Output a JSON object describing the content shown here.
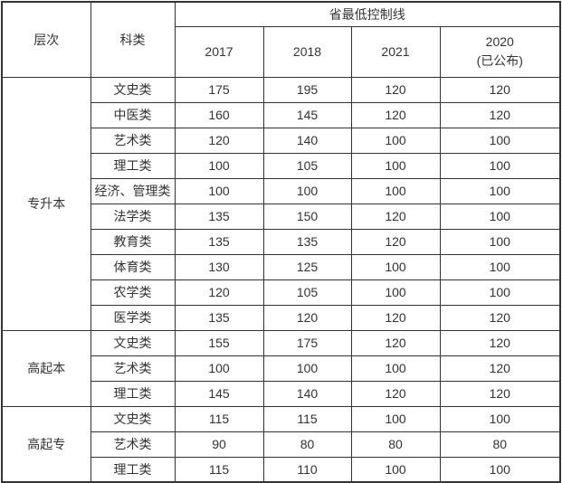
{
  "table": {
    "header": {
      "level": "层次",
      "category": "科类",
      "group_title": "省最低控制线",
      "years": [
        {
          "line1": "2017"
        },
        {
          "line1": "2018"
        },
        {
          "line1": "2021"
        },
        {
          "line1": "2020",
          "line2": "(已公布)"
        }
      ]
    },
    "groups": [
      {
        "level": "专升本",
        "rows": [
          {
            "category": "文史类",
            "values": [
              "175",
              "195",
              "120",
              "120"
            ]
          },
          {
            "category": "中医类",
            "values": [
              "160",
              "145",
              "120",
              "120"
            ]
          },
          {
            "category": "艺术类",
            "values": [
              "120",
              "140",
              "100",
              "100"
            ]
          },
          {
            "category": "理工类",
            "values": [
              "100",
              "105",
              "100",
              "100"
            ]
          },
          {
            "category": "经济、管理类",
            "values": [
              "100",
              "100",
              "100",
              "100"
            ]
          },
          {
            "category": "法学类",
            "values": [
              "135",
              "150",
              "120",
              "100"
            ]
          },
          {
            "category": "教育类",
            "values": [
              "135",
              "135",
              "120",
              "100"
            ]
          },
          {
            "category": "体育类",
            "values": [
              "130",
              "125",
              "100",
              "100"
            ]
          },
          {
            "category": "农学类",
            "values": [
              "120",
              "105",
              "100",
              "100"
            ]
          },
          {
            "category": "医学类",
            "values": [
              "135",
              "120",
              "120",
              "120"
            ]
          }
        ]
      },
      {
        "level": "高起本",
        "rows": [
          {
            "category": "文史类",
            "values": [
              "155",
              "175",
              "120",
              "120"
            ]
          },
          {
            "category": "艺术类",
            "values": [
              "100",
              "100",
              "100",
              "120"
            ]
          },
          {
            "category": "理工类",
            "values": [
              "145",
              "140",
              "120",
              "120"
            ]
          }
        ]
      },
      {
        "level": "高起专",
        "rows": [
          {
            "category": "文史类",
            "values": [
              "115",
              "115",
              "100",
              "100"
            ]
          },
          {
            "category": "艺术类",
            "values": [
              "90",
              "80",
              "80",
              "80"
            ]
          },
          {
            "category": "理工类",
            "values": [
              "115",
              "110",
              "100",
              "100"
            ]
          }
        ]
      }
    ],
    "colors": {
      "border": "#333333",
      "text": "#333333",
      "background": "#ffffff"
    }
  },
  "chart_data": {
    "type": "table",
    "title": "省最低控制线",
    "columns": [
      "层次",
      "科类",
      "2017",
      "2018",
      "2021",
      "2020(已公布)"
    ],
    "rows": [
      [
        "专升本",
        "文史类",
        175,
        195,
        120,
        120
      ],
      [
        "专升本",
        "中医类",
        160,
        145,
        120,
        120
      ],
      [
        "专升本",
        "艺术类",
        120,
        140,
        100,
        100
      ],
      [
        "专升本",
        "理工类",
        100,
        105,
        100,
        100
      ],
      [
        "专升本",
        "经济、管理类",
        100,
        100,
        100,
        100
      ],
      [
        "专升本",
        "法学类",
        135,
        150,
        120,
        100
      ],
      [
        "专升本",
        "教育类",
        135,
        135,
        120,
        100
      ],
      [
        "专升本",
        "体育类",
        130,
        125,
        100,
        100
      ],
      [
        "专升本",
        "农学类",
        120,
        105,
        100,
        100
      ],
      [
        "专升本",
        "医学类",
        135,
        120,
        120,
        120
      ],
      [
        "高起本",
        "文史类",
        155,
        175,
        120,
        120
      ],
      [
        "高起本",
        "艺术类",
        100,
        100,
        100,
        120
      ],
      [
        "高起本",
        "理工类",
        145,
        140,
        120,
        120
      ],
      [
        "高起专",
        "文史类",
        115,
        115,
        100,
        100
      ],
      [
        "高起专",
        "艺术类",
        90,
        80,
        80,
        80
      ],
      [
        "高起专",
        "理工类",
        115,
        110,
        100,
        100
      ]
    ]
  }
}
